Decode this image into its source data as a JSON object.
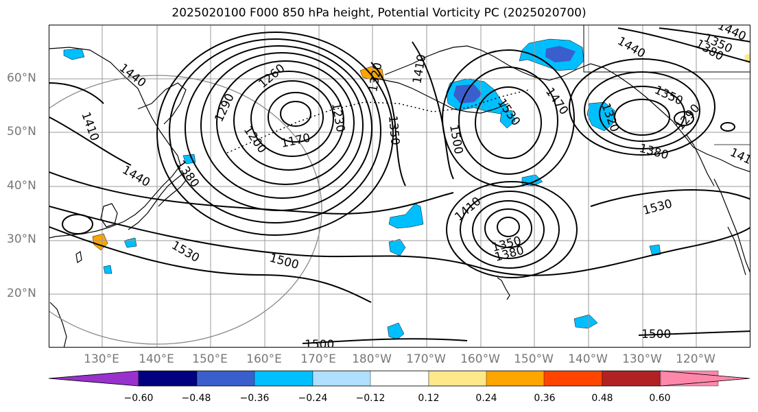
{
  "title": "2025020100 F000 850 hPa height, Potential Vorticity PC (2025020700)",
  "latitude_labels": [
    "60°N",
    "50°N",
    "40°N",
    "30°N",
    "20°N"
  ],
  "longitude_labels": [
    "130°E",
    "140°E",
    "150°E",
    "160°E",
    "170°E",
    "180°W",
    "170°W",
    "160°W",
    "150°W",
    "140°W",
    "130°W",
    "120°W"
  ],
  "contour_labels": [
    "1440",
    "1410",
    "1290",
    "1260",
    "1200",
    "1170",
    "1230",
    "1320",
    "1350",
    "1410",
    "1500",
    "1530",
    "1470",
    "1440",
    "1350",
    "1320",
    "1290",
    "1380",
    "1380",
    "1440",
    "1410",
    "1530",
    "1500",
    "1500",
    "1530",
    "1410",
    "1350",
    "1380",
    "1500",
    "1350",
    "1380",
    "1440"
  ],
  "colorbar": {
    "ticks": [
      "−0.60",
      "−0.48",
      "−0.36",
      "−0.24",
      "−0.12",
      "0.12",
      "0.24",
      "0.36",
      "0.48",
      "0.60"
    ],
    "colors": [
      "#9932cc",
      "#000080",
      "#3a5fcd",
      "#00bfff",
      "#b0e0ff",
      "#ffffff",
      "#ffe88a",
      "#ffa500",
      "#ff4500",
      "#b22222",
      "#ff88aa",
      "#ff88aa"
    ]
  },
  "shading_colors": {
    "cyan": "#00bfff",
    "light_blue": "#b0e0ff",
    "medium_blue": "#3a5fcd",
    "orange": "#ffa500",
    "gold": "#ffe88a"
  }
}
